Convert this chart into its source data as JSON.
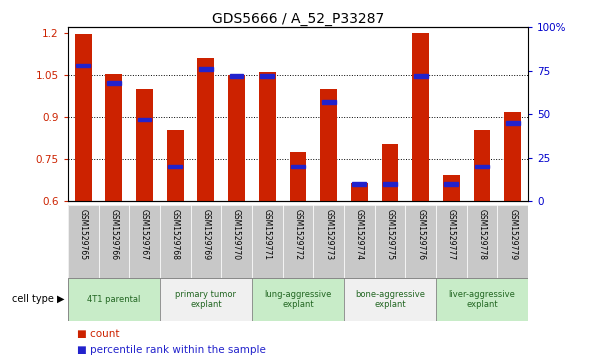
{
  "title": "GDS5666 / A_52_P33287",
  "samples": [
    "GSM1529765",
    "GSM1529766",
    "GSM1529767",
    "GSM1529768",
    "GSM1529769",
    "GSM1529770",
    "GSM1529771",
    "GSM1529772",
    "GSM1529773",
    "GSM1529774",
    "GSM1529775",
    "GSM1529776",
    "GSM1529777",
    "GSM1529778",
    "GSM1529779"
  ],
  "counts": [
    1.195,
    1.055,
    1.0,
    0.855,
    1.11,
    1.05,
    1.06,
    0.775,
    1.0,
    0.665,
    0.805,
    1.2,
    0.695,
    0.855,
    0.92
  ],
  "percentile_ranks": [
    0.78,
    0.68,
    0.47,
    0.2,
    0.76,
    0.72,
    0.72,
    0.2,
    0.57,
    0.1,
    0.1,
    0.72,
    0.1,
    0.2,
    0.45
  ],
  "ylim_left": [
    0.6,
    1.22
  ],
  "ylim_right": [
    0,
    100
  ],
  "yticks_left": [
    0.6,
    0.75,
    0.9,
    1.05,
    1.2
  ],
  "yticks_right": [
    0,
    25,
    50,
    75,
    100
  ],
  "ytick_labels_left": [
    "0.6",
    "0.75",
    "0.9",
    "1.05",
    "1.2"
  ],
  "ytick_labels_right": [
    "0",
    "25",
    "50",
    "75",
    "100%"
  ],
  "cell_types": [
    {
      "label": "4T1 parental",
      "start": 0,
      "end": 3,
      "color": "#c8ecc8"
    },
    {
      "label": "primary tumor\nexplant",
      "start": 3,
      "end": 6,
      "color": "#f0f0f0"
    },
    {
      "label": "lung-aggressive\nexplant",
      "start": 6,
      "end": 9,
      "color": "#c8ecc8"
    },
    {
      "label": "bone-aggressive\nexplant",
      "start": 9,
      "end": 12,
      "color": "#f0f0f0"
    },
    {
      "label": "liver-aggressive\nexplant",
      "start": 12,
      "end": 15,
      "color": "#c8ecc8"
    }
  ],
  "bar_color": "#cc2200",
  "percentile_color": "#2222cc",
  "sample_bg_color": "#c8c8c8",
  "title_fontsize": 10,
  "bar_width": 0.55,
  "percentile_bar_width": 0.45
}
